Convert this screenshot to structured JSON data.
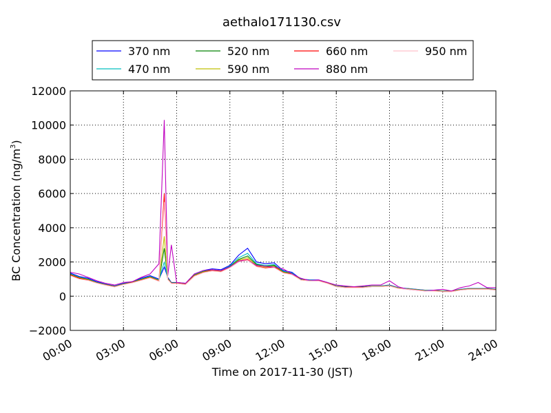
{
  "chart_data": {
    "type": "line",
    "title": "aethalo171130.csv",
    "xlabel": "Time on 2017-11-30 (JST)",
    "ylabel": "BC Concentration (ng/m",
    "ylabel_sup": "3",
    "ylabel_end": ")",
    "xlim": [
      0,
      24
    ],
    "ylim": [
      -2000,
      12000
    ],
    "x_ticks": [
      {
        "v": 0,
        "label": "00:00"
      },
      {
        "v": 3,
        "label": "03:00"
      },
      {
        "v": 6,
        "label": "06:00"
      },
      {
        "v": 9,
        "label": "09:00"
      },
      {
        "v": 12,
        "label": "12:00"
      },
      {
        "v": 15,
        "label": "15:00"
      },
      {
        "v": 18,
        "label": "18:00"
      },
      {
        "v": 21,
        "label": "21:00"
      },
      {
        "v": 24,
        "label": "24:00"
      }
    ],
    "y_ticks": [
      {
        "v": -2000,
        "label": "−2000"
      },
      {
        "v": 0,
        "label": "0"
      },
      {
        "v": 2000,
        "label": "2000"
      },
      {
        "v": 4000,
        "label": "4000"
      },
      {
        "v": 6000,
        "label": "6000"
      },
      {
        "v": 8000,
        "label": "8000"
      },
      {
        "v": 10000,
        "label": "10000"
      },
      {
        "v": 12000,
        "label": "12000"
      }
    ],
    "grid": true,
    "legend_position": "top",
    "x": [
      0,
      0.5,
      1,
      1.5,
      2,
      2.5,
      3,
      3.5,
      4,
      4.5,
      5,
      5.3,
      5.5,
      5.7,
      6,
      6.5,
      7,
      7.5,
      8,
      8.5,
      9,
      9.5,
      10,
      10.5,
      11,
      11.5,
      12,
      12.5,
      13,
      13.5,
      14,
      14.5,
      15,
      15.5,
      16,
      16.5,
      17,
      17.5,
      18,
      18.5,
      19,
      19.5,
      20,
      20.5,
      21,
      21.5,
      22,
      22.5,
      23,
      23.5,
      24
    ],
    "series": [
      {
        "name": "370 nm",
        "color": "#0000ff",
        "values": [
          1350,
          1150,
          1050,
          850,
          700,
          600,
          750,
          850,
          1050,
          1200,
          1000,
          1700,
          1100,
          800,
          800,
          750,
          1300,
          1500,
          1600,
          1550,
          1800,
          2400,
          2800,
          2000,
          1900,
          1950,
          1500,
          1400,
          1000,
          950,
          950,
          800,
          600,
          550,
          550,
          550,
          600,
          600,
          650,
          500,
          450,
          400,
          350,
          350,
          300,
          300,
          400,
          450,
          450,
          450,
          400
        ]
      },
      {
        "name": "470 nm",
        "color": "#00bfbf",
        "values": [
          1300,
          1100,
          1000,
          800,
          680,
          580,
          720,
          820,
          1000,
          1150,
          950,
          2000,
          1050,
          780,
          780,
          720,
          1250,
          1450,
          1550,
          1500,
          1750,
          2250,
          2500,
          1900,
          1800,
          1850,
          1450,
          1350,
          980,
          930,
          930,
          780,
          590,
          540,
          540,
          540,
          590,
          590,
          630,
          490,
          440,
          390,
          340,
          340,
          300,
          300,
          390,
          440,
          440,
          440,
          390
        ]
      },
      {
        "name": "520 nm",
        "color": "#008000",
        "values": [
          1280,
          1080,
          980,
          790,
          670,
          570,
          710,
          810,
          980,
          1130,
          930,
          2800,
          1030,
          770,
          770,
          710,
          1230,
          1430,
          1530,
          1480,
          1720,
          2150,
          2350,
          1850,
          1750,
          1800,
          1420,
          1320,
          970,
          920,
          920,
          770,
          580,
          530,
          530,
          530,
          580,
          580,
          620,
          480,
          430,
          380,
          330,
          330,
          290,
          290,
          380,
          430,
          430,
          430,
          380
        ]
      },
      {
        "name": "590 nm",
        "color": "#bfbf00",
        "values": [
          1260,
          1060,
          960,
          780,
          660,
          560,
          700,
          800,
          960,
          1110,
          910,
          3500,
          1010,
          760,
          760,
          700,
          1210,
          1410,
          1510,
          1460,
          1700,
          2100,
          2250,
          1800,
          1700,
          1750,
          1400,
          1300,
          960,
          910,
          910,
          760,
          570,
          520,
          520,
          520,
          570,
          570,
          610,
          470,
          420,
          370,
          320,
          320,
          280,
          280,
          370,
          420,
          420,
          420,
          370
        ]
      },
      {
        "name": "660 nm",
        "color": "#ff0000",
        "values": [
          1240,
          1040,
          940,
          770,
          650,
          550,
          690,
          790,
          940,
          1090,
          890,
          6000,
          990,
          750,
          750,
          690,
          1190,
          1390,
          1490,
          1440,
          1680,
          2050,
          2150,
          1750,
          1650,
          1700,
          1380,
          1280,
          950,
          900,
          900,
          750,
          560,
          510,
          510,
          510,
          560,
          560,
          600,
          460,
          410,
          360,
          310,
          310,
          270,
          270,
          360,
          410,
          410,
          410,
          360
        ]
      },
      {
        "name": "880 nm",
        "color": "#bf00bf",
        "values": [
          1400,
          1300,
          1100,
          900,
          750,
          650,
          800,
          850,
          1100,
          1300,
          1900,
          10300,
          1200,
          3000,
          800,
          750,
          1300,
          1500,
          1550,
          1500,
          1700,
          2050,
          2100,
          1800,
          1750,
          1700,
          1600,
          1300,
          1050,
          900,
          950,
          800,
          650,
          600,
          550,
          600,
          650,
          650,
          900,
          550,
          400,
          350,
          300,
          350,
          400,
          300,
          500,
          600,
          800,
          500,
          500
        ]
      },
      {
        "name": "950 nm",
        "color": "#ffc0cb",
        "values": [
          1200,
          1000,
          920,
          760,
          640,
          540,
          680,
          780,
          920,
          1070,
          870,
          5500,
          970,
          740,
          740,
          680,
          1170,
          1370,
          1470,
          1420,
          1660,
          2000,
          2100,
          1720,
          1620,
          1670,
          1360,
          1260,
          940,
          890,
          890,
          740,
          550,
          500,
          500,
          500,
          550,
          550,
          590,
          450,
          400,
          350,
          300,
          300,
          260,
          260,
          350,
          400,
          400,
          400,
          350
        ]
      }
    ]
  }
}
